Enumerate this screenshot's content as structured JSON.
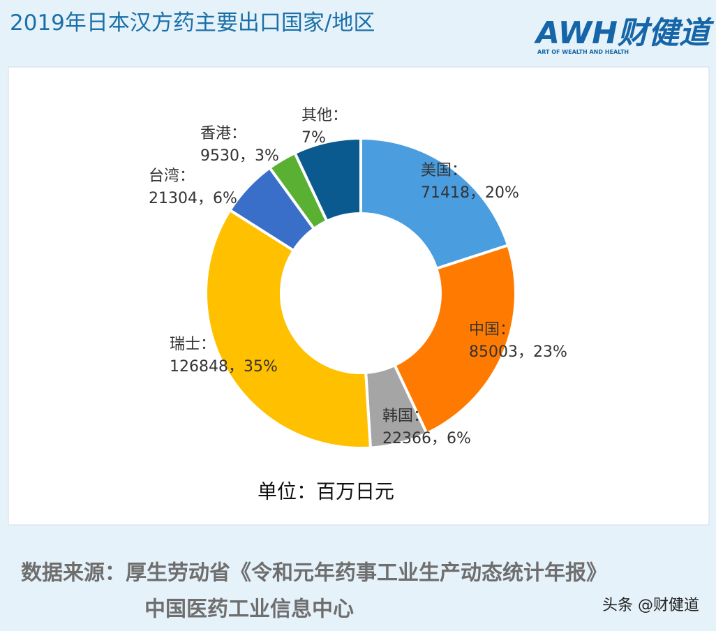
{
  "header": {
    "title": "2019年日本汉方药主要出口国家/地区",
    "logo": "AWH财健道",
    "logo_tagline": "ART OF WEALTH AND HEALTH"
  },
  "chart_data": {
    "type": "pie",
    "categories": [
      "美国：",
      "中国：",
      "韩国：",
      "瑞士：",
      "台湾：",
      "香港：",
      "其他："
    ],
    "values": [
      20,
      23,
      6,
      35,
      6,
      3,
      7
    ],
    "value_labels": [
      "71418，20%",
      "85003，23%",
      "22366，6%",
      "126848，35%",
      "21304，6%",
      "9530，3%",
      "7%"
    ],
    "colors": [
      "#4a9ddf",
      "#ff7a00",
      "#a5a5a5",
      "#ffc000",
      "#3a6fc9",
      "#5ab033",
      "#0a5a8f"
    ],
    "note": "单位：百万日元"
  },
  "footer": {
    "source": "数据来源：厚生劳动省《令和元年药事工业生产动态统计年报》",
    "source_line2": "中国医药工业信息中心",
    "watermark": "头条 @财健道"
  }
}
